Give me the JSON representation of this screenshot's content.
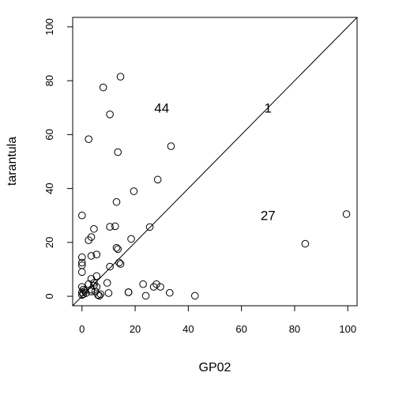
{
  "chart_data": {
    "type": "scatter",
    "xlabel": "GP02",
    "ylabel": "tarantula",
    "xlim": [
      -3.5,
      103.5
    ],
    "ylim": [
      -3.5,
      103.5
    ],
    "x_ticks": [
      0,
      20,
      40,
      60,
      80,
      100
    ],
    "y_ticks": [
      0,
      20,
      40,
      60,
      80,
      100
    ],
    "x_tick_labels": [
      "0",
      "20",
      "40",
      "60",
      "80",
      "100"
    ],
    "y_tick_labels": [
      "0",
      "20",
      "40",
      "60",
      "80",
      "100"
    ],
    "reference_line": {
      "from": [
        -3.5,
        -3.5
      ],
      "to": [
        103.5,
        103.5
      ]
    },
    "grid": false,
    "legend": "none",
    "marker": "open-circle",
    "annotations": [
      {
        "text": "44",
        "x": 30,
        "y": 70
      },
      {
        "text": "1",
        "x": 70,
        "y": 70
      },
      {
        "text": "27",
        "x": 70,
        "y": 30
      }
    ],
    "points": [
      [
        14.5,
        81.5
      ],
      [
        8,
        77.5
      ],
      [
        10.5,
        67.5
      ],
      [
        2.5,
        58.3
      ],
      [
        33.5,
        55.7
      ],
      [
        13.5,
        53.5
      ],
      [
        28.5,
        43.3
      ],
      [
        19.5,
        39.0
      ],
      [
        13,
        35.0
      ],
      [
        0,
        30.0
      ],
      [
        99.5,
        30.5
      ],
      [
        4.5,
        25.0
      ],
      [
        10.5,
        25.8
      ],
      [
        12.5,
        26.0
      ],
      [
        25.5,
        25.7
      ],
      [
        3.5,
        22.0
      ],
      [
        2.5,
        20.8
      ],
      [
        18.5,
        21.3
      ],
      [
        84,
        19.5
      ],
      [
        13,
        18.0
      ],
      [
        13.5,
        17.5
      ],
      [
        3.5,
        15.0
      ],
      [
        5.5,
        15.5
      ],
      [
        0,
        14.5
      ],
      [
        0,
        12.5
      ],
      [
        0,
        11.5
      ],
      [
        14,
        12.5
      ],
      [
        14.5,
        12.0
      ],
      [
        0,
        9.0
      ],
      [
        10.5,
        11.0
      ],
      [
        5.5,
        7.5
      ],
      [
        3.5,
        6.5
      ],
      [
        4.5,
        5.0
      ],
      [
        9.5,
        5.0
      ],
      [
        2.5,
        4.5
      ],
      [
        4.5,
        4.0
      ],
      [
        5.5,
        3.5
      ],
      [
        0,
        3.5
      ],
      [
        0.5,
        2.5
      ],
      [
        1,
        2.0
      ],
      [
        0,
        1.5
      ],
      [
        1.5,
        1.2
      ],
      [
        3.5,
        2.5
      ],
      [
        5,
        1.8
      ],
      [
        3.5,
        1.8
      ],
      [
        0,
        0.5
      ],
      [
        0.5,
        0.8
      ],
      [
        6,
        0.5
      ],
      [
        7,
        0.8
      ],
      [
        6.5,
        0.2
      ],
      [
        10,
        1.2
      ],
      [
        17.5,
        1.5
      ],
      [
        23,
        4.5
      ],
      [
        24,
        0.2
      ],
      [
        27,
        3.5
      ],
      [
        28,
        4.5
      ],
      [
        29.5,
        3.5
      ],
      [
        33,
        1.3
      ],
      [
        42.5,
        0.2
      ],
      [
        17.5,
        1.5
      ]
    ]
  }
}
